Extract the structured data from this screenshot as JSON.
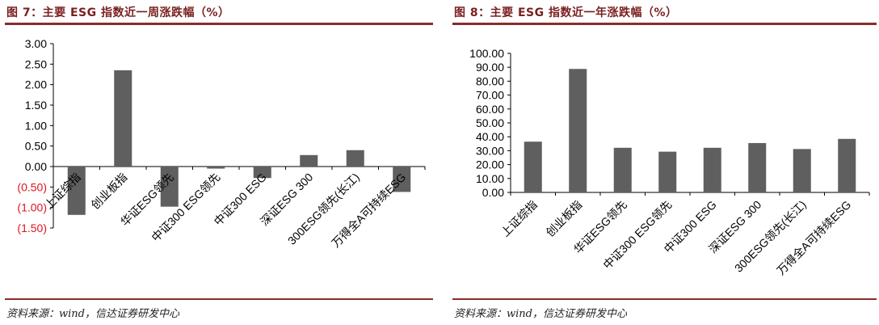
{
  "charts": [
    {
      "figure_label": "图 7：主要 ESG 指数近一周涨跌幅（%）",
      "source": "资料来源：wind，信达证券研发中心"
    },
    {
      "figure_label": "图 8：主要 ESG 指数近一年涨跌幅（%）",
      "source": "资料来源：wind，信达证券研发中心"
    }
  ],
  "colors": {
    "bar": "#5f5f5f",
    "negative_tick": "#e0141e",
    "tick": "#000000",
    "accent_rule": "#8a2b2b",
    "title": "#7a1f1f"
  },
  "chart_data": [
    {
      "type": "bar",
      "title": "主要 ESG 指数近一周涨跌幅（%）",
      "categories": [
        "上证综指",
        "创业板指",
        "华证ESG领先",
        "中证300 ESG领先",
        "中证300 ESG",
        "深证ESG 300",
        "300ESG领先(长江)",
        "万得全A可持续ESG"
      ],
      "values": [
        -1.18,
        2.35,
        -0.98,
        -0.05,
        -0.28,
        0.28,
        0.4,
        -0.62
      ],
      "ylim": [
        -1.5,
        3.0
      ],
      "yticks": [
        3.0,
        2.5,
        2.0,
        1.5,
        1.0,
        0.5,
        0.0,
        -0.5,
        -1.0,
        -1.5
      ],
      "ytick_labels": [
        "3.00",
        "2.50",
        "2.00",
        "1.50",
        "1.00",
        "0.50",
        "0.00",
        "(0.50)",
        "(1.00)",
        "(1.50)"
      ],
      "xlabel": "",
      "ylabel": "",
      "grid": false,
      "legend": "none"
    },
    {
      "type": "bar",
      "title": "主要 ESG 指数近一年涨跌幅（%）",
      "categories": [
        "上证综指",
        "创业板指",
        "华证ESG领先",
        "中证300 ESG领先",
        "中证300 ESG",
        "深证ESG 300",
        "300ESG领先(长江)",
        "万得全A可持续ESG"
      ],
      "values": [
        36.5,
        88.8,
        32.1,
        29.3,
        32.1,
        35.5,
        31.2,
        38.5
      ],
      "ylim": [
        0,
        100
      ],
      "yticks": [
        100,
        90,
        80,
        70,
        60,
        50,
        40,
        30,
        20,
        10,
        0
      ],
      "ytick_labels": [
        "100.00",
        "90.00",
        "80.00",
        "70.00",
        "60.00",
        "50.00",
        "40.00",
        "30.00",
        "20.00",
        "10.00",
        "0.00"
      ],
      "xlabel": "",
      "ylabel": "",
      "grid": false,
      "legend": "none"
    }
  ]
}
